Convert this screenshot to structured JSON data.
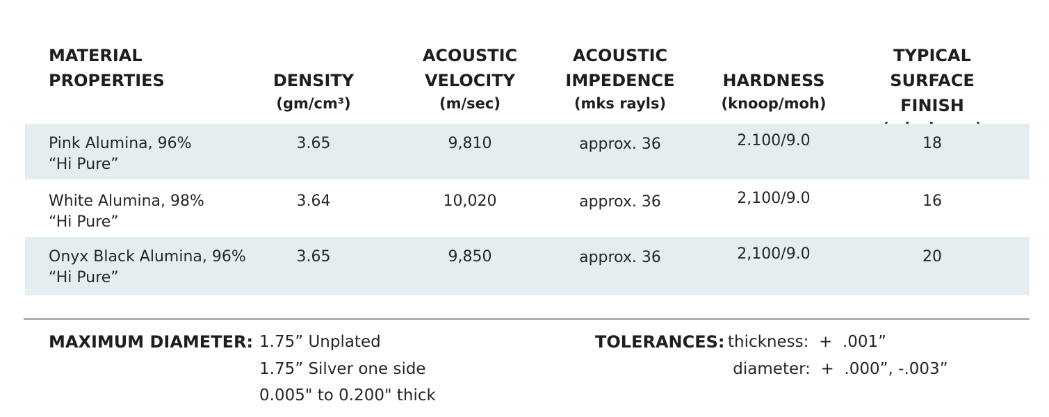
{
  "headers": {
    "material": [
      "MATERIAL",
      "PROPERTIES"
    ],
    "density": {
      "label": "DENSITY",
      "unit": "(gm/cm³)"
    },
    "velocity": {
      "label": [
        "ACOUSTIC",
        "VELOCITY"
      ],
      "unit": "(m/sec)"
    },
    "impedence": {
      "label": [
        "ACOUSTIC",
        "IMPEDENCE"
      ],
      "unit": "(mks rayls)"
    },
    "hardness": {
      "label": "HARDNESS",
      "unit": "(knoop/moh)"
    },
    "surface": {
      "label": [
        "TYPICAL",
        "SURFACE FINISH"
      ],
      "unit": "(μ inch rms)"
    }
  },
  "rows": [
    {
      "material": [
        "Pink Alumina, 96%",
        "“Hi Pure”"
      ],
      "density": "3.65",
      "velocity": "9,810",
      "impedence": "approx. 36",
      "hardness": "2.100/9.0",
      "surface": "18"
    },
    {
      "material": [
        "White Alumina, 98%",
        "“Hi Pure”"
      ],
      "density": "3.64",
      "velocity": "10,020",
      "impedence": "approx. 36",
      "hardness": "2,100/9.0",
      "surface": "16"
    },
    {
      "material": [
        "Onyx Black Alumina, 96%",
        "“Hi Pure”"
      ],
      "density": "3.65",
      "velocity": "9,850",
      "impedence": "approx. 36",
      "hardness": "2,100/9.0",
      "surface": "20"
    }
  ],
  "footer": {
    "max_label": "MAXIMUM DIAMETER:",
    "max_values": [
      "1.75” Unplated",
      "1.75” Silver one side",
      "0.005\" to 0.200\" thick"
    ],
    "tol_label": "TOLERANCES:",
    "tol_values": [
      "thickness:  +  .001”",
      " diameter:  +  .000”, -.003”"
    ]
  },
  "colors": {
    "row_shade": "#e4edf0",
    "rule": "#9a9a9a"
  }
}
